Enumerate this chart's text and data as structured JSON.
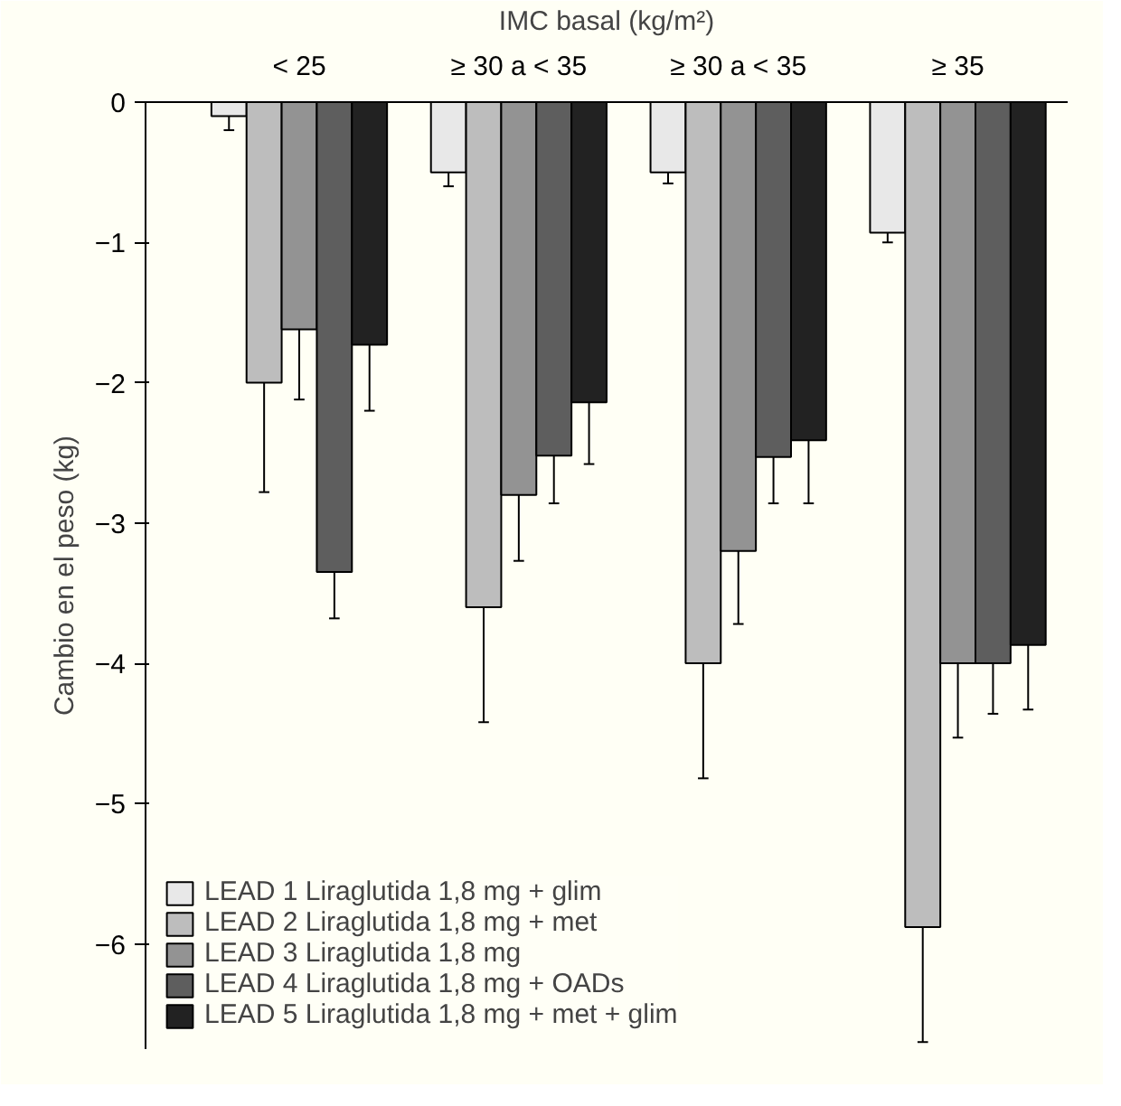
{
  "chart_data": {
    "type": "bar",
    "xlabel": "IMC basal (kg/m²)",
    "ylabel": "Cambio en el peso (kg)",
    "categories": [
      "< 25",
      "≥ 30 a < 35",
      "≥ 30 a < 35",
      "≥ 35"
    ],
    "series": [
      {
        "name": "LEAD 1 Liraglutida 1,8 mg + glim",
        "color": "#e8e8e8",
        "values": [
          -0.1,
          -0.5,
          -0.5,
          -0.93
        ],
        "errors": [
          [
            -0.2,
            -0.1
          ],
          [
            -0.6,
            -0.5
          ],
          [
            -0.58,
            -0.5
          ],
          [
            -1.0,
            -0.93
          ]
        ]
      },
      {
        "name": "LEAD 2 Liraglutida 1,8 mg + met",
        "color": "#bdbdbd",
        "values": [
          -2.0,
          -3.6,
          -4.0,
          -5.88
        ],
        "errors": [
          [
            -2.78,
            -2.0
          ],
          [
            -4.42,
            -3.6
          ],
          [
            -4.82,
            -4.0
          ],
          [
            -6.7,
            -5.88
          ]
        ]
      },
      {
        "name": "LEAD 3 Liraglutida 1,8 mg",
        "color": "#939393",
        "values": [
          -1.62,
          -2.8,
          -3.2,
          -4.0
        ],
        "errors": [
          [
            -2.12,
            -1.62
          ],
          [
            -3.27,
            -2.8
          ],
          [
            -3.72,
            -3.2
          ],
          [
            -4.53,
            -4.0
          ]
        ]
      },
      {
        "name": "LEAD 4 Liraglutida 1,8 mg + OADs",
        "color": "#5e5e5e",
        "values": [
          -3.35,
          -2.52,
          -2.53,
          -4.0
        ],
        "errors": [
          [
            -3.68,
            -3.35
          ],
          [
            -2.86,
            -2.52
          ],
          [
            -2.86,
            -2.53
          ],
          [
            -4.36,
            -4.0
          ]
        ]
      },
      {
        "name": "LEAD 5 Liraglutida 1,8 mg + met + glim",
        "color": "#222222",
        "values": [
          -1.73,
          -2.14,
          -2.41,
          -3.87
        ],
        "errors": [
          [
            -2.2,
            -1.73
          ],
          [
            -2.58,
            -2.14
          ],
          [
            -2.86,
            -2.41
          ],
          [
            -4.33,
            -3.87
          ]
        ]
      }
    ],
    "ylim": [
      -6.75,
      0
    ],
    "yticks": [
      0,
      -1,
      -2,
      -3,
      -4,
      -5,
      -6
    ],
    "grid": false,
    "legend": "bottom left"
  }
}
